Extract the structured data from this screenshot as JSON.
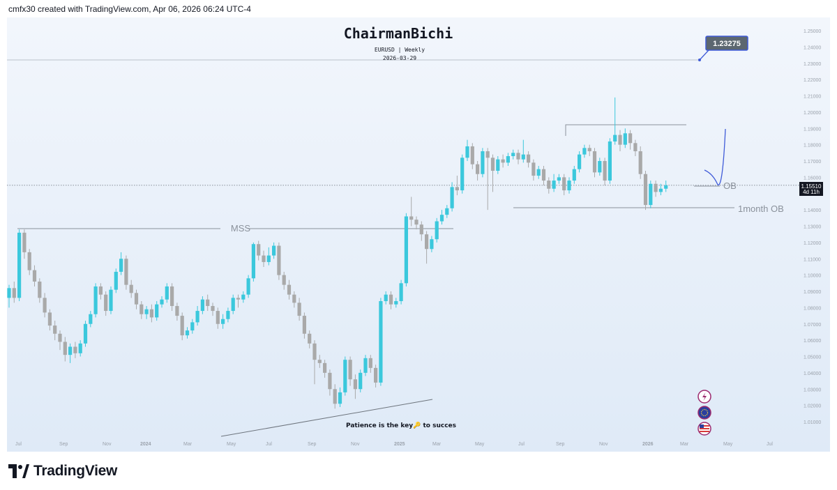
{
  "header_text": "cmfx30 created with TradingView.com, Apr 06, 2026 06:24 UTC-4",
  "footer": {
    "brand": "TradingView"
  },
  "colors": {
    "bull": "#3bc8dc",
    "bear": "#a9a9a9",
    "line": "#8a919b",
    "curve": "#3f5bd8",
    "badge": "#5c6770"
  },
  "icons": [
    "lightning-icon",
    "eu-flag-icon",
    "us-flag-icon"
  ],
  "chart_data": {
    "type": "candlestick",
    "title": "ChairmanBichi",
    "subtitle": "EURUSD | Weekly",
    "date_label": "2026-03-29",
    "symbol": "EURUSD",
    "timeframe": "Weekly",
    "ylim": [
      1.0,
      1.26
    ],
    "y_ticks": [
      "1.25000",
      "1.24000",
      "1.23000",
      "1.22000",
      "1.21000",
      "1.20000",
      "1.19000",
      "1.18000",
      "1.17000",
      "1.16000",
      "1.14000",
      "1.13000",
      "1.12000",
      "1.11000",
      "1.10000",
      "1.09000",
      "1.08000",
      "1.07000",
      "1.06000",
      "1.05000",
      "1.04000",
      "1.03000",
      "1.02000",
      "1.01000"
    ],
    "x_ticks": [
      {
        "label": "Jul",
        "bold": false
      },
      {
        "label": "Sep",
        "bold": false
      },
      {
        "label": "Nov",
        "bold": false
      },
      {
        "label": "2024",
        "bold": true
      },
      {
        "label": "Mar",
        "bold": false
      },
      {
        "label": "May",
        "bold": false
      },
      {
        "label": "Jul",
        "bold": false
      },
      {
        "label": "Sep",
        "bold": false
      },
      {
        "label": "Nov",
        "bold": false
      },
      {
        "label": "2025",
        "bold": true
      },
      {
        "label": "Mar",
        "bold": false
      },
      {
        "label": "May",
        "bold": false
      },
      {
        "label": "Jul",
        "bold": false
      },
      {
        "label": "Sep",
        "bold": false
      },
      {
        "label": "Nov",
        "bold": false
      },
      {
        "label": "2026",
        "bold": true
      },
      {
        "label": "Mar",
        "bold": false
      },
      {
        "label": "May",
        "bold": false
      },
      {
        "label": "Jul",
        "bold": false
      }
    ],
    "current_price": "1.15510",
    "current_price_value": 1.1551,
    "time_remaining": "4d 11h",
    "target_label": "1.23275",
    "target_value": 1.23275,
    "annotations": {
      "mss": "MSS",
      "ob": "OB",
      "month_ob": "1month OB",
      "patience": "Patience is the key🔑 to succes"
    },
    "levels": {
      "mss": 1.128,
      "range_high": 1.192,
      "month_ob": 1.14,
      "ob": 1.15
    },
    "candles": [
      [
        1.086,
        1.092,
        1.08,
        1.094
      ],
      [
        1.092,
        1.086,
        1.083,
        1.096
      ],
      [
        1.086,
        1.126,
        1.084,
        1.128
      ],
      [
        1.126,
        1.114,
        1.11,
        1.128
      ],
      [
        1.114,
        1.103,
        1.1,
        1.116
      ],
      [
        1.103,
        1.096,
        1.093,
        1.106
      ],
      [
        1.096,
        1.086,
        1.083,
        1.098
      ],
      [
        1.086,
        1.077,
        1.074,
        1.089
      ],
      [
        1.077,
        1.069,
        1.066,
        1.079
      ],
      [
        1.069,
        1.064,
        1.06,
        1.072
      ],
      [
        1.064,
        1.059,
        1.054,
        1.066
      ],
      [
        1.059,
        1.051,
        1.047,
        1.062
      ],
      [
        1.051,
        1.056,
        1.046,
        1.058
      ],
      [
        1.056,
        1.052,
        1.049,
        1.059
      ],
      [
        1.052,
        1.058,
        1.05,
        1.06
      ],
      [
        1.058,
        1.07,
        1.056,
        1.072
      ],
      [
        1.07,
        1.076,
        1.068,
        1.078
      ],
      [
        1.076,
        1.093,
        1.074,
        1.095
      ],
      [
        1.093,
        1.088,
        1.085,
        1.095
      ],
      [
        1.088,
        1.078,
        1.075,
        1.09
      ],
      [
        1.078,
        1.091,
        1.076,
        1.093
      ],
      [
        1.091,
        1.102,
        1.089,
        1.104
      ],
      [
        1.102,
        1.11,
        1.1,
        1.114
      ],
      [
        1.11,
        1.094,
        1.091,
        1.112
      ],
      [
        1.094,
        1.089,
        1.086,
        1.097
      ],
      [
        1.089,
        1.082,
        1.079,
        1.091
      ],
      [
        1.082,
        1.076,
        1.073,
        1.084
      ],
      [
        1.076,
        1.079,
        1.073,
        1.081
      ],
      [
        1.079,
        1.074,
        1.071,
        1.082
      ],
      [
        1.074,
        1.082,
        1.072,
        1.084
      ],
      [
        1.082,
        1.085,
        1.08,
        1.087
      ],
      [
        1.085,
        1.093,
        1.083,
        1.095
      ],
      [
        1.093,
        1.081,
        1.078,
        1.095
      ],
      [
        1.081,
        1.075,
        1.072,
        1.083
      ],
      [
        1.075,
        1.063,
        1.06,
        1.077
      ],
      [
        1.063,
        1.066,
        1.061,
        1.068
      ],
      [
        1.066,
        1.071,
        1.064,
        1.073
      ],
      [
        1.071,
        1.078,
        1.069,
        1.081
      ],
      [
        1.078,
        1.085,
        1.076,
        1.087
      ],
      [
        1.085,
        1.081,
        1.078,
        1.088
      ],
      [
        1.081,
        1.078,
        1.075,
        1.083
      ],
      [
        1.078,
        1.07,
        1.067,
        1.08
      ],
      [
        1.07,
        1.073,
        1.067,
        1.076
      ],
      [
        1.073,
        1.078,
        1.071,
        1.08
      ],
      [
        1.078,
        1.086,
        1.076,
        1.088
      ],
      [
        1.086,
        1.085,
        1.08,
        1.088
      ],
      [
        1.085,
        1.088,
        1.083,
        1.09
      ],
      [
        1.088,
        1.098,
        1.086,
        1.1
      ],
      [
        1.098,
        1.119,
        1.096,
        1.12
      ],
      [
        1.119,
        1.112,
        1.109,
        1.121
      ],
      [
        1.112,
        1.108,
        1.105,
        1.115
      ],
      [
        1.108,
        1.112,
        1.106,
        1.117
      ],
      [
        1.112,
        1.118,
        1.11,
        1.12
      ],
      [
        1.118,
        1.1,
        1.097,
        1.12
      ],
      [
        1.1,
        1.094,
        1.091,
        1.102
      ],
      [
        1.094,
        1.088,
        1.085,
        1.097
      ],
      [
        1.088,
        1.083,
        1.08,
        1.09
      ],
      [
        1.083,
        1.075,
        1.072,
        1.086
      ],
      [
        1.075,
        1.064,
        1.061,
        1.077
      ],
      [
        1.064,
        1.058,
        1.055,
        1.066
      ],
      [
        1.058,
        1.048,
        1.033,
        1.06
      ],
      [
        1.048,
        1.046,
        1.043,
        1.051
      ],
      [
        1.046,
        1.04,
        1.037,
        1.048
      ],
      [
        1.04,
        1.03,
        1.026,
        1.042
      ],
      [
        1.03,
        1.021,
        1.018,
        1.033
      ],
      [
        1.021,
        1.028,
        1.019,
        1.031
      ],
      [
        1.028,
        1.048,
        1.026,
        1.05
      ],
      [
        1.048,
        1.036,
        1.032,
        1.05
      ],
      [
        1.036,
        1.03,
        1.024,
        1.039
      ],
      [
        1.03,
        1.04,
        1.028,
        1.042
      ],
      [
        1.04,
        1.049,
        1.038,
        1.051
      ],
      [
        1.049,
        1.043,
        1.04,
        1.051
      ],
      [
        1.043,
        1.034,
        1.031,
        1.045
      ],
      [
        1.034,
        1.084,
        1.032,
        1.086
      ],
      [
        1.084,
        1.088,
        1.082,
        1.09
      ],
      [
        1.088,
        1.082,
        1.079,
        1.09
      ],
      [
        1.082,
        1.084,
        1.08,
        1.086
      ],
      [
        1.084,
        1.095,
        1.082,
        1.097
      ],
      [
        1.095,
        1.136,
        1.093,
        1.138
      ],
      [
        1.136,
        1.134,
        1.13,
        1.148
      ],
      [
        1.134,
        1.131,
        1.128,
        1.136
      ],
      [
        1.131,
        1.125,
        1.121,
        1.133
      ],
      [
        1.125,
        1.116,
        1.107,
        1.127
      ],
      [
        1.116,
        1.122,
        1.114,
        1.124
      ],
      [
        1.122,
        1.133,
        1.12,
        1.135
      ],
      [
        1.133,
        1.137,
        1.131,
        1.14
      ],
      [
        1.137,
        1.141,
        1.135,
        1.143
      ],
      [
        1.141,
        1.154,
        1.139,
        1.157
      ],
      [
        1.154,
        1.152,
        1.149,
        1.161
      ],
      [
        1.152,
        1.172,
        1.15,
        1.174
      ],
      [
        1.172,
        1.179,
        1.17,
        1.183
      ],
      [
        1.179,
        1.168,
        1.165,
        1.181
      ],
      [
        1.168,
        1.162,
        1.158,
        1.17
      ],
      [
        1.162,
        1.176,
        1.16,
        1.178
      ],
      [
        1.176,
        1.172,
        1.14,
        1.178
      ],
      [
        1.172,
        1.164,
        1.151,
        1.174
      ],
      [
        1.164,
        1.171,
        1.162,
        1.173
      ],
      [
        1.171,
        1.169,
        1.166,
        1.174
      ],
      [
        1.169,
        1.173,
        1.167,
        1.175
      ],
      [
        1.173,
        1.175,
        1.171,
        1.177
      ],
      [
        1.175,
        1.171,
        1.168,
        1.177
      ],
      [
        1.171,
        1.174,
        1.169,
        1.183
      ],
      [
        1.174,
        1.169,
        1.166,
        1.176
      ],
      [
        1.169,
        1.161,
        1.158,
        1.171
      ],
      [
        1.161,
        1.165,
        1.159,
        1.167
      ],
      [
        1.165,
        1.158,
        1.155,
        1.167
      ],
      [
        1.158,
        1.153,
        1.15,
        1.16
      ],
      [
        1.153,
        1.158,
        1.151,
        1.162
      ],
      [
        1.158,
        1.16,
        1.156,
        1.162
      ],
      [
        1.16,
        1.152,
        1.149,
        1.162
      ],
      [
        1.152,
        1.158,
        1.15,
        1.16
      ],
      [
        1.158,
        1.165,
        1.156,
        1.167
      ],
      [
        1.165,
        1.174,
        1.163,
        1.176
      ],
      [
        1.174,
        1.178,
        1.172,
        1.18
      ],
      [
        1.178,
        1.176,
        1.173,
        1.18
      ],
      [
        1.176,
        1.163,
        1.16,
        1.178
      ],
      [
        1.163,
        1.17,
        1.161,
        1.172
      ],
      [
        1.17,
        1.158,
        1.155,
        1.172
      ],
      [
        1.158,
        1.182,
        1.156,
        1.184
      ],
      [
        1.182,
        1.186,
        1.18,
        1.209
      ],
      [
        1.186,
        1.18,
        1.176,
        1.189
      ],
      [
        1.18,
        1.187,
        1.178,
        1.19
      ],
      [
        1.187,
        1.181,
        1.177,
        1.189
      ],
      [
        1.181,
        1.176,
        1.173,
        1.183
      ],
      [
        1.176,
        1.162,
        1.159,
        1.179
      ],
      [
        1.162,
        1.143,
        1.14,
        1.164
      ],
      [
        1.143,
        1.156,
        1.141,
        1.158
      ],
      [
        1.156,
        1.151,
        1.148,
        1.158
      ],
      [
        1.151,
        1.153,
        1.149,
        1.156
      ],
      [
        1.153,
        1.1551,
        1.151,
        1.158
      ]
    ]
  }
}
